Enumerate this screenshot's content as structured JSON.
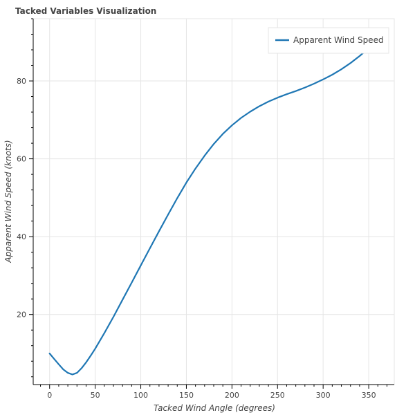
{
  "chart_data": {
    "type": "line",
    "title": "Tacked Variables Visualization",
    "xlabel": "Tacked Wind Angle (degrees)",
    "ylabel": "Apparent Wind Speed (knots)",
    "xlim": [
      -18,
      378
    ],
    "ylim": [
      2,
      96
    ],
    "x_ticks": [
      0,
      50,
      100,
      150,
      200,
      250,
      300,
      350
    ],
    "x_minor_step": 10,
    "y_ticks": [
      20,
      40,
      60,
      80
    ],
    "y_minor_step": 4,
    "grid": true,
    "legend": "top-right",
    "series": [
      {
        "name": "Apparent Wind Speed",
        "color": "#1f77b4",
        "x": [
          0,
          5,
          10,
          15,
          20,
          25,
          30,
          35,
          40,
          45,
          50,
          60,
          70,
          80,
          90,
          100,
          110,
          120,
          130,
          140,
          150,
          160,
          170,
          180,
          190,
          200,
          210,
          220,
          230,
          240,
          250,
          260,
          270,
          280,
          290,
          300,
          310,
          320,
          330,
          340,
          345
        ],
        "values": [
          10.0,
          8.6,
          7.2,
          5.9,
          5.0,
          4.6,
          5.0,
          6.2,
          7.7,
          9.4,
          11.2,
          15.2,
          19.4,
          23.8,
          28.2,
          32.6,
          37.0,
          41.4,
          45.7,
          49.9,
          53.9,
          57.5,
          60.8,
          63.8,
          66.4,
          68.6,
          70.5,
          72.1,
          73.5,
          74.7,
          75.7,
          76.6,
          77.4,
          78.3,
          79.3,
          80.4,
          81.6,
          83.0,
          84.6,
          86.4,
          87.4
        ]
      }
    ]
  }
}
